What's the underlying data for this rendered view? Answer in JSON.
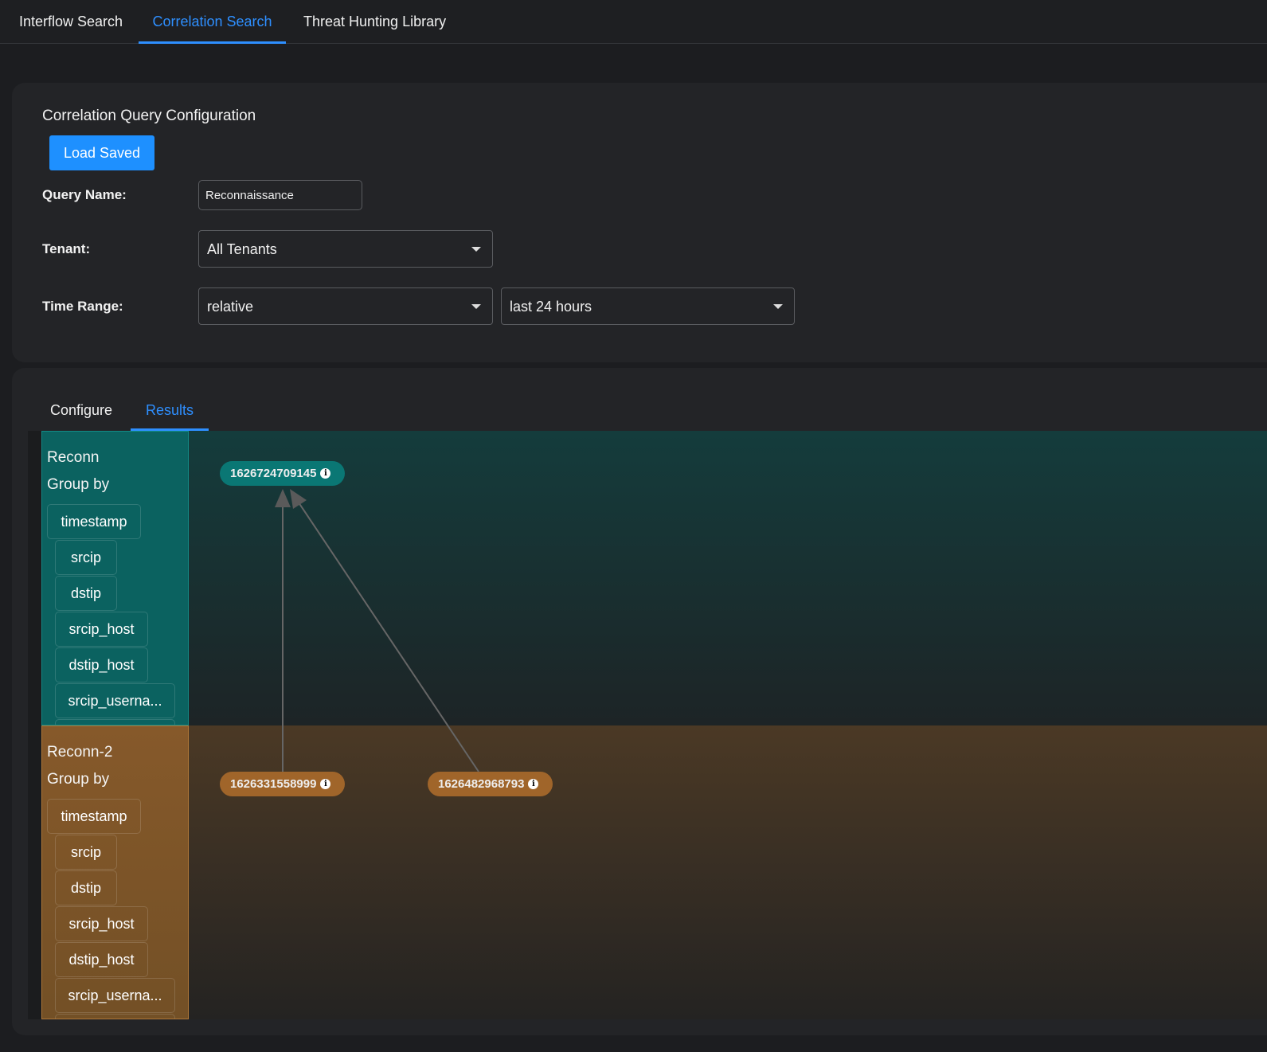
{
  "nav": {
    "tabs": [
      {
        "label": "Interflow Search"
      },
      {
        "label": "Correlation Search",
        "active": true
      },
      {
        "label": "Threat Hunting Library"
      }
    ]
  },
  "config": {
    "title": "Correlation Query Configuration",
    "load_saved": "Load Saved",
    "query_name_label": "Query Name:",
    "query_name_value": "Reconnaissance",
    "tenant_label": "Tenant:",
    "tenant_value": "All Tenants",
    "time_range_label": "Time Range:",
    "time_type_value": "relative",
    "time_value": "last 24 hours"
  },
  "subtabs": [
    {
      "label": "Configure"
    },
    {
      "label": "Results",
      "active": true
    }
  ],
  "colors": {
    "accent": "#1e90ff",
    "lane1": "#0b6260",
    "lane2": "#86592a"
  },
  "lanes": [
    {
      "name": "Reconn",
      "group_by_label": "Group by",
      "fields": [
        "timestamp",
        "srcip",
        "dstip",
        "srcip_host",
        "dstip_host",
        "srcip_userna..."
      ],
      "nodes": [
        {
          "label": "1626724709145",
          "icon": "info-icon"
        }
      ]
    },
    {
      "name": "Reconn-2",
      "group_by_label": "Group by",
      "fields": [
        "timestamp",
        "srcip",
        "dstip",
        "srcip_host",
        "dstip_host",
        "srcip_userna..."
      ],
      "nodes": [
        {
          "label": "1626331558999",
          "icon": "info-icon"
        },
        {
          "label": "1626482968793",
          "icon": "info-icon"
        }
      ]
    }
  ]
}
